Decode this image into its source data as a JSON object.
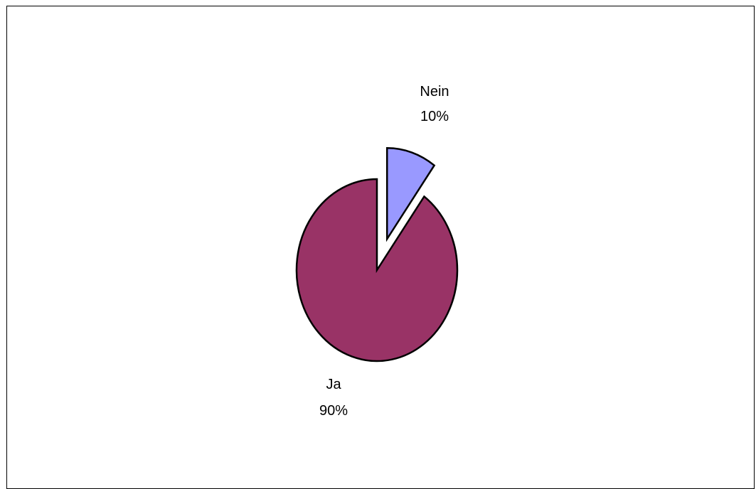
{
  "chart_data": {
    "type": "pie",
    "slices": [
      {
        "label": "Ja",
        "value": 90,
        "percent_label": "90%",
        "color": "#993366"
      },
      {
        "label": "Nein",
        "value": 10,
        "percent_label": "10%",
        "color": "#9999FF",
        "exploded": true
      }
    ],
    "legend": "none",
    "data_labels": "category-and-percent"
  }
}
